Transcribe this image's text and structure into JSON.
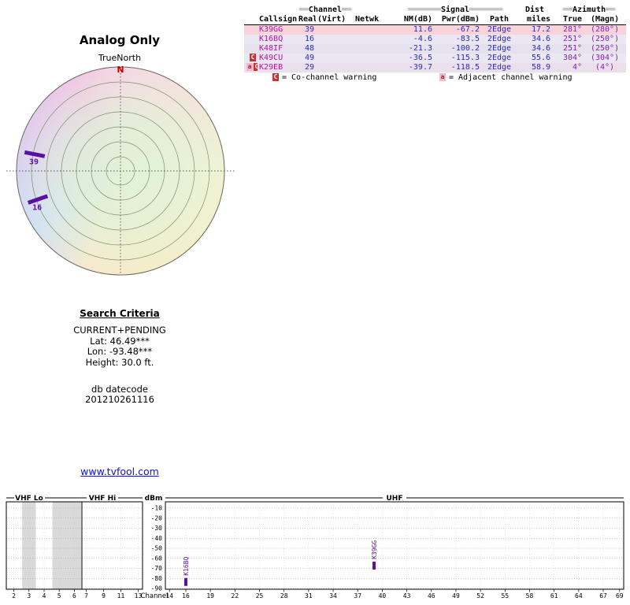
{
  "report": {
    "title": "Analog Only",
    "true_north_label": "TrueNorth",
    "search": {
      "heading": "Search Criteria",
      "mode": "CURRENT+PENDING",
      "lat": "Lat: 46.49***",
      "lon": "Lon: -93.48***",
      "height": "Height: 30.0 ft.",
      "db_label": "db datecode",
      "db_value": "201210261116"
    },
    "link_text": "www.tvfool.com"
  },
  "table": {
    "group_headers": {
      "channel": {
        "pre": "══",
        "label": "Channel",
        "post": "══"
      },
      "signal": {
        "pre": "═══════",
        "label": "Signal",
        "post": "═══════"
      },
      "dist": {
        "pre": "",
        "label": "Dist",
        "post": ""
      },
      "azimuth": {
        "pre": "══",
        "label": "Azimuth",
        "post": "══"
      }
    },
    "headers": {
      "callsign": "Callsign",
      "real": "Real",
      "virt": "(Virt)",
      "netwk": "Netwk",
      "nm": "NM(dB)",
      "pwr": "Pwr(dBm)",
      "path": "Path",
      "miles": "miles",
      "true": "True",
      "magn": "(Magn)"
    },
    "rows": [
      {
        "badges": [],
        "callsign": "K39GG",
        "real": "39",
        "virt": "",
        "netwk": "",
        "nm": "11.6",
        "pwr": "-67.2",
        "path": "2Edge",
        "miles": "17.2",
        "true": "281°",
        "magn": "(280°)",
        "bg": "#f8d4da"
      },
      {
        "badges": [],
        "callsign": "K16BQ",
        "real": "16",
        "virt": "",
        "netwk": "",
        "nm": "-4.6",
        "pwr": "-83.5",
        "path": "2Edge",
        "miles": "34.6",
        "true": "251°",
        "magn": "(250°)",
        "bg": "#eae6f2"
      },
      {
        "badges": [],
        "callsign": "K48IF",
        "real": "48",
        "virt": "",
        "netwk": "",
        "nm": "-21.3",
        "pwr": "-100.2",
        "path": "2Edge",
        "miles": "34.6",
        "true": "251°",
        "magn": "(250°)",
        "bg": "#e5e1ed"
      },
      {
        "badges": [
          "C"
        ],
        "callsign": "K49CU",
        "real": "49",
        "virt": "",
        "netwk": "",
        "nm": "-36.5",
        "pwr": "-115.3",
        "path": "2Edge",
        "miles": "55.6",
        "true": "304°",
        "magn": "(304°)",
        "bg": "#eae6f2"
      },
      {
        "badges": [
          "a",
          "C"
        ],
        "callsign": "K29EB",
        "real": "29",
        "virt": "",
        "netwk": "",
        "nm": "-39.7",
        "pwr": "-118.5",
        "path": "2Edge",
        "miles": "58.9",
        "true": "4°",
        "magn": "(4°)",
        "bg": "#ecdfec"
      }
    ],
    "legend": [
      {
        "badge": "C",
        "text": "= Co-channel warning"
      },
      {
        "badge": "a",
        "text": "= Adjacent channel warning"
      }
    ]
  },
  "chart_data": [
    {
      "type": "scatter",
      "subtype": "polar-azimuth-plot",
      "title": "Analog Only",
      "north_label": "N",
      "rings": 7,
      "stations": [
        {
          "callsign": "K39GG",
          "channel": 39,
          "azimuth_deg": 281,
          "nm_db": 11.6
        },
        {
          "callsign": "K16BQ",
          "channel": 16,
          "azimuth_deg": 251,
          "nm_db": -4.6
        }
      ]
    },
    {
      "type": "scatter",
      "subtype": "channel-spectrum",
      "xlabel": "Channel",
      "ylabel": "dBm",
      "ylim": [
        -95,
        -5
      ],
      "yticks": [
        -10,
        -20,
        -30,
        -40,
        -50,
        -60,
        -70,
        -80,
        -90
      ],
      "sections": [
        {
          "label": "VHF Lo",
          "channels": [
            2,
            3,
            4,
            5,
            6
          ]
        },
        {
          "label": "VHF Hi",
          "channels": [
            7,
            9,
            11,
            13
          ]
        },
        {
          "label": "UHF",
          "channels": [
            14,
            16,
            19,
            22,
            25,
            28,
            31,
            34,
            37,
            40,
            43,
            46,
            49,
            52,
            55,
            58,
            61,
            64,
            67,
            69
          ]
        }
      ],
      "shaded_channel_groups": [
        [
          3
        ],
        [
          5,
          6
        ]
      ],
      "points": [
        {
          "callsign": "K16BQ",
          "channel": 16,
          "power_dbm": -83.5
        },
        {
          "callsign": "K39GG",
          "channel": 39,
          "power_dbm": -67.2
        }
      ]
    }
  ],
  "colors": {
    "marker_purple": "#5a0fa5",
    "callsign_magenta": "#b5179e",
    "value_blue": "#2a2ac0",
    "azimuth_purple": "#8a1fb0",
    "north_red": "#cc0000",
    "link_blue": "#1414cc"
  }
}
